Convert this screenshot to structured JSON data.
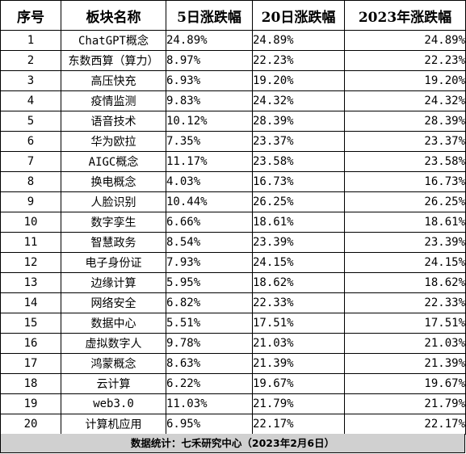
{
  "headers": [
    "序号",
    "板块名称",
    "5日涨跌幅",
    "20日涨跌幅",
    "2023年涨跌幅"
  ],
  "rows": [
    {
      "idx": "1",
      "name": "ChatGPT概念",
      "d5": "24.89%",
      "d20": "24.89%",
      "ytd": "24.89%"
    },
    {
      "idx": "2",
      "name": "东数西算（算力）",
      "d5": "8.97%",
      "d20": "22.23%",
      "ytd": "22.23%"
    },
    {
      "idx": "3",
      "name": "高压快充",
      "d5": "6.93%",
      "d20": "19.20%",
      "ytd": "19.20%"
    },
    {
      "idx": "4",
      "name": "疫情监测",
      "d5": "9.83%",
      "d20": "24.32%",
      "ytd": "24.32%"
    },
    {
      "idx": "5",
      "name": "语音技术",
      "d5": "10.12%",
      "d20": "28.39%",
      "ytd": "28.39%"
    },
    {
      "idx": "6",
      "name": "华为欧拉",
      "d5": "7.35%",
      "d20": "23.37%",
      "ytd": "23.37%"
    },
    {
      "idx": "7",
      "name": "AIGC概念",
      "d5": "11.17%",
      "d20": "23.58%",
      "ytd": "23.58%"
    },
    {
      "idx": "8",
      "name": "换电概念",
      "d5": "4.03%",
      "d20": "16.73%",
      "ytd": "16.73%"
    },
    {
      "idx": "9",
      "name": "人脸识别",
      "d5": "10.44%",
      "d20": "26.25%",
      "ytd": "26.25%"
    },
    {
      "idx": "10",
      "name": "数字孪生",
      "d5": "6.66%",
      "d20": "18.61%",
      "ytd": "18.61%"
    },
    {
      "idx": "11",
      "name": "智慧政务",
      "d5": "8.54%",
      "d20": "23.39%",
      "ytd": "23.39%"
    },
    {
      "idx": "12",
      "name": "电子身份证",
      "d5": "7.93%",
      "d20": "24.15%",
      "ytd": "24.15%"
    },
    {
      "idx": "13",
      "name": "边缘计算",
      "d5": "5.95%",
      "d20": "18.62%",
      "ytd": "18.62%"
    },
    {
      "idx": "14",
      "name": "网络安全",
      "d5": "6.82%",
      "d20": "22.33%",
      "ytd": "22.33%"
    },
    {
      "idx": "15",
      "name": "数据中心",
      "d5": "5.51%",
      "d20": "17.51%",
      "ytd": "17.51%"
    },
    {
      "idx": "16",
      "name": "虚拟数字人",
      "d5": "9.78%",
      "d20": "21.03%",
      "ytd": "21.03%"
    },
    {
      "idx": "17",
      "name": "鸿蒙概念",
      "d5": "8.63%",
      "d20": "21.39%",
      "ytd": "21.39%"
    },
    {
      "idx": "18",
      "name": "云计算",
      "d5": "6.22%",
      "d20": "19.67%",
      "ytd": "19.67%"
    },
    {
      "idx": "19",
      "name": "web3.0",
      "d5": "11.03%",
      "d20": "21.79%",
      "ytd": "21.79%"
    },
    {
      "idx": "20",
      "name": "计算机应用",
      "d5": "6.95%",
      "d20": "22.17%",
      "ytd": "22.17%"
    }
  ],
  "footer": "数据统计：七禾研究中心（2023年2月6日）"
}
